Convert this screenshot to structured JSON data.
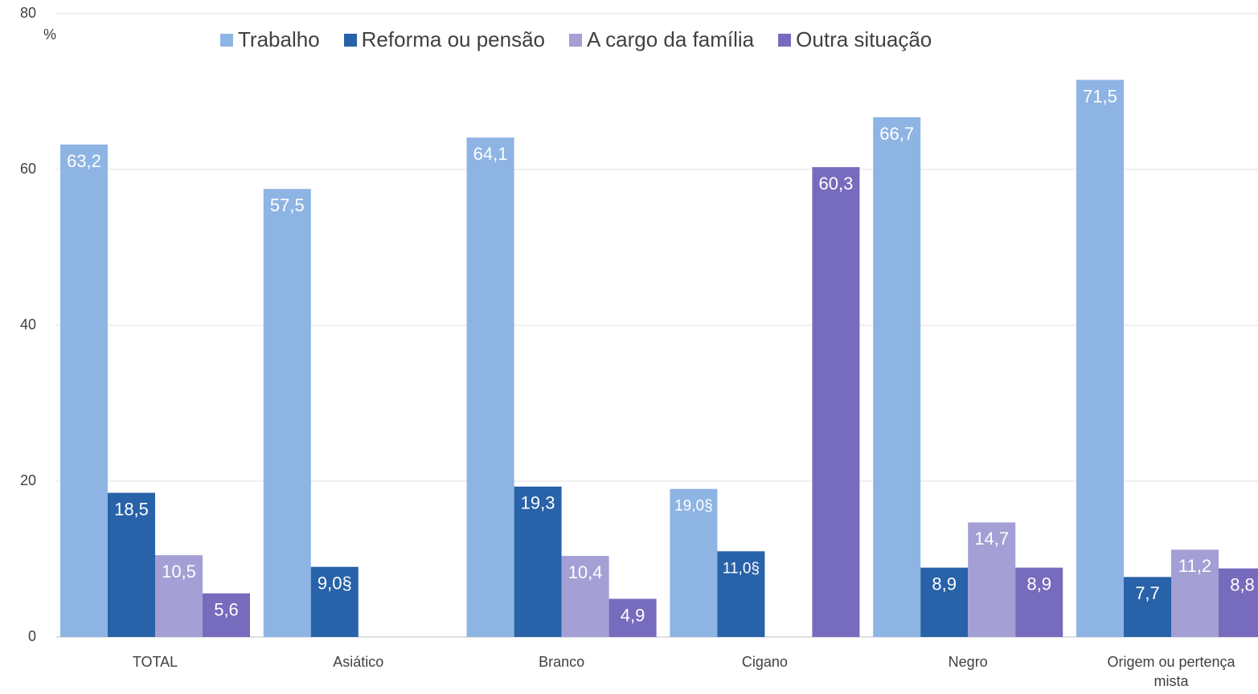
{
  "chart_data": {
    "type": "bar",
    "y_label": "%",
    "categories": [
      "TOTAL",
      "Asiático",
      "Branco",
      "Cigano",
      "Negro",
      "Origem ou pertença mista"
    ],
    "series": [
      {
        "name": "Trabalho",
        "color": "#8eb4e3",
        "values": [
          63.2,
          57.5,
          64.1,
          19.0,
          66.7,
          71.5
        ],
        "value_labels": [
          "63,2",
          "57,5",
          "64,1",
          "19,0§",
          "66,7",
          "71,5"
        ]
      },
      {
        "name": "Reforma ou pensão",
        "color": "#2862a8",
        "values": [
          18.5,
          9.0,
          19.3,
          11.0,
          8.9,
          7.7
        ],
        "value_labels": [
          "18,5",
          "9,0§",
          "19,3",
          "11,0§",
          "8,9",
          "7,7"
        ]
      },
      {
        "name": "A cargo da família",
        "color": "#a49fd4",
        "values": [
          10.5,
          null,
          10.4,
          null,
          14.7,
          11.2
        ],
        "value_labels": [
          "10,5",
          null,
          "10,4",
          null,
          "14,7",
          "11,2"
        ]
      },
      {
        "name": "Outra situação",
        "color": "#766bbd",
        "values": [
          5.6,
          null,
          4.9,
          60.3,
          8.9,
          8.8
        ],
        "value_labels": [
          "5,6",
          null,
          "4,9",
          "60,3",
          "8,9",
          "8,8"
        ]
      }
    ],
    "ylim": [
      0,
      80
    ],
    "yticks": [
      0,
      20,
      40,
      60,
      80
    ],
    "grid": true,
    "legend": "top"
  }
}
